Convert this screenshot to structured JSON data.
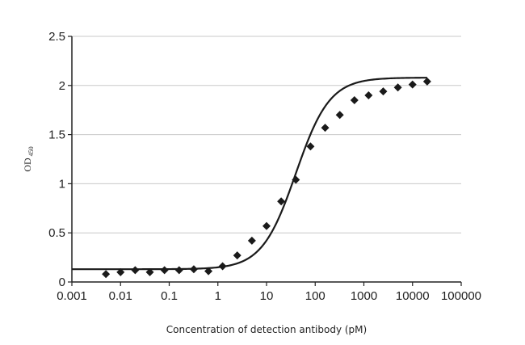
{
  "chart_data": {
    "type": "scatter",
    "title": "",
    "xlabel": "Concentration of detection antibody (pM)",
    "ylabel": {
      "main": "OD",
      "sub": "450"
    },
    "xscale": "log",
    "xlim": [
      0.001,
      100000
    ],
    "ylim": [
      0,
      2.5
    ],
    "xticks": [
      "0.001",
      "0.01",
      "0.1",
      "1",
      "10",
      "100",
      "1000",
      "10000",
      "100000"
    ],
    "yticks": [
      "0",
      "0.5",
      "1",
      "1.5",
      "2",
      "2.5"
    ],
    "grid": "horizontal",
    "legend": "none",
    "series": [
      {
        "marker": "diamond",
        "color": "#1a1a1a",
        "x": [
          0.005,
          0.01,
          0.02,
          0.04,
          0.08,
          0.16,
          0.32,
          0.64,
          1.25,
          2.5,
          5,
          10,
          20,
          40,
          80,
          160,
          320,
          640,
          1250,
          2500,
          5000,
          10000,
          20000
        ],
        "y": [
          0.08,
          0.1,
          0.12,
          0.1,
          0.12,
          0.12,
          0.13,
          0.11,
          0.16,
          0.27,
          0.42,
          0.57,
          0.82,
          1.04,
          1.38,
          1.57,
          1.7,
          1.85,
          1.9,
          1.94,
          1.98,
          2.01,
          2.04
        ]
      }
    ],
    "fit_curve": {
      "type": "4PL",
      "bottom": 0.13,
      "top": 2.08,
      "ec50": 40,
      "hill": 1.25,
      "x_range": [
        0.001,
        20000
      ],
      "color": "#1a1a1a"
    }
  }
}
